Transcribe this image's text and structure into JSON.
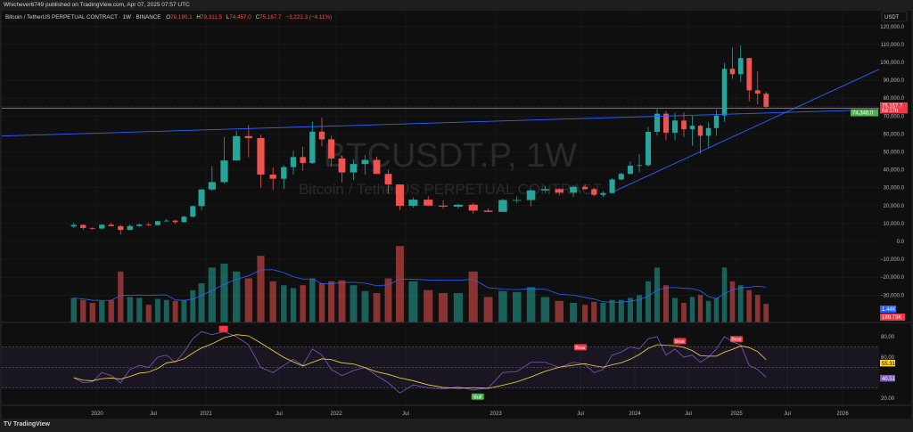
{
  "header": {
    "published": "Whichever6749 published on TradingView.com, Apr 07, 2025 07:57 UTC",
    "symbol_desc": "Bitcoin / TetherUS PERPETUAL CONTRACT · 1W · BINANCE",
    "o_label": "O",
    "o_value": "78,190.1",
    "h_label": "H",
    "h_value": "79,311.5",
    "l_label": "L",
    "l_value": "74,457.0",
    "c_label": "C",
    "c_value": "75,167.7",
    "change": "−3,222.3 (−4.11%)"
  },
  "watermark": {
    "symbol": "BTCUSDT.P, 1W",
    "description": "Bitcoin / TetherUS PERPETUAL CONTRACT"
  },
  "footer": {
    "logo_text": "TradingView"
  },
  "colors": {
    "up": "#26a69a",
    "down": "#ef5350",
    "trendline": "#2962ff",
    "horizontal": "#4caf50",
    "rsi": "#7e57c2",
    "rsi_ma": "#fdd835",
    "volume_ma": "#2962ff",
    "background": "#0f0f0f"
  },
  "chart_data": {
    "type": "candlestick",
    "currency": "USDT",
    "period_start": "2019-10",
    "period_step": "month",
    "close": [
      9200,
      7500,
      7200,
      9300,
      8500,
      6400,
      8600,
      9400,
      9100,
      11300,
      11600,
      10800,
      13800,
      19700,
      29000,
      33100,
      45200,
      58800,
      57700,
      37300,
      35000,
      41500,
      47100,
      43800,
      61300,
      57000,
      46300,
      38500,
      43200,
      45500,
      37700,
      31800,
      19900,
      23300,
      20000,
      19400,
      20500,
      17200,
      16500,
      23100,
      23100,
      28500,
      29200,
      27200,
      30500,
      29200,
      26000,
      27000,
      34600,
      37700,
      42300,
      42600,
      61200,
      71300,
      60700,
      67500,
      62700,
      64600,
      59000,
      63300,
      70300,
      96400,
      93400,
      102400,
      84400,
      82500,
      75167.7
    ],
    "first_open": 8300,
    "high": [
      10500,
      9400,
      7700,
      9600,
      10500,
      9200,
      9500,
      10100,
      10400,
      11500,
      12500,
      12100,
      14100,
      19900,
      29300,
      41900,
      58300,
      61800,
      64900,
      59500,
      41300,
      42400,
      50500,
      52900,
      67000,
      69000,
      59000,
      48000,
      45800,
      48200,
      47400,
      40000,
      31900,
      24600,
      25200,
      22800,
      21000,
      21500,
      18400,
      23900,
      25200,
      29100,
      31000,
      29800,
      31400,
      31800,
      30000,
      28000,
      35200,
      38400,
      44700,
      48900,
      64000,
      73800,
      72800,
      71900,
      72000,
      70000,
      65100,
      66500,
      73600,
      99600,
      108300,
      109400,
      102500,
      95000,
      83500
    ],
    "low": [
      7300,
      6500,
      6400,
      6900,
      8400,
      3800,
      6200,
      8100,
      8900,
      9000,
      11000,
      9900,
      10400,
      13200,
      17600,
      28100,
      32300,
      45000,
      47000,
      30000,
      28800,
      29300,
      37300,
      39600,
      43300,
      53200,
      42000,
      33000,
      34300,
      37200,
      37700,
      26700,
      17600,
      18800,
      19500,
      18100,
      18200,
      15500,
      16300,
      16500,
      21400,
      19600,
      26900,
      25800,
      24800,
      28900,
      25200,
      24900,
      26900,
      34100,
      37600,
      38500,
      41800,
      59000,
      56500,
      56500,
      58400,
      53500,
      49000,
      52500,
      59000,
      66800,
      90800,
      89100,
      78200,
      76600,
      74457
    ],
    "volume_k": [
      250,
      230,
      200,
      220,
      230,
      520,
      260,
      250,
      180,
      240,
      230,
      220,
      230,
      330,
      400,
      560,
      600,
      520,
      450,
      680,
      420,
      380,
      350,
      380,
      450,
      400,
      420,
      430,
      380,
      320,
      300,
      450,
      780,
      420,
      330,
      300,
      300,
      520,
      260,
      320,
      310,
      360,
      260,
      220,
      200,
      180,
      210,
      200,
      230,
      230,
      250,
      280,
      420,
      560,
      380,
      250,
      200,
      260,
      280,
      220,
      250,
      560,
      420,
      380,
      330,
      280,
      189.73
    ],
    "rsi": [
      40,
      35,
      36,
      45,
      42,
      35,
      48,
      52,
      50,
      60,
      62,
      55,
      65,
      78,
      85,
      82,
      85,
      80,
      72,
      50,
      45,
      52,
      58,
      52,
      68,
      62,
      48,
      42,
      47,
      50,
      42,
      35,
      25,
      33,
      30,
      29,
      31,
      28,
      30,
      45,
      46,
      55,
      55,
      50,
      55,
      53,
      45,
      48,
      62,
      65,
      70,
      68,
      78,
      80,
      62,
      68,
      60,
      62,
      55,
      60,
      68,
      80,
      75,
      72,
      52,
      48,
      40.51
    ],
    "price_axis": {
      "ticks": [
        "120,000.0",
        "110,000.0",
        "100,000.0",
        "90,000.0",
        "80,000.0",
        "70,000.0",
        "60,000.0",
        "50,000.0",
        "40,000.0",
        "30,000.0",
        "20,000.0",
        "10,000.0",
        "0.0",
        "−10,000.0",
        "−20,000.0",
        "−30,000.0"
      ],
      "tick_values": [
        120000,
        110000,
        100000,
        90000,
        80000,
        70000,
        60000,
        50000,
        40000,
        30000,
        20000,
        10000,
        0,
        -10000,
        -20000,
        -30000
      ]
    },
    "rsi_axis": {
      "ticks": [
        "80.00",
        "60.00",
        "20.00"
      ],
      "tick_values": [
        80,
        60,
        20
      ],
      "bands": [
        30,
        50,
        70
      ]
    },
    "time_axis": {
      "ticks": [
        "2020",
        "Jul",
        "2021",
        "Jul",
        "2022",
        "Jul",
        "2023",
        "Jul",
        "2024",
        "Jul",
        "2025",
        "Jul",
        "2026"
      ],
      "tick_values": [
        2020,
        2020.5,
        2021,
        2021.5,
        2022,
        2022.5,
        2023,
        2023.5,
        2024,
        2024.5,
        2025,
        2025.5,
        2026
      ]
    },
    "price_tags": [
      {
        "text": "75,167.7",
        "sub": "6d 17h",
        "value": 75167.7,
        "color": "#f23645"
      },
      {
        "text": "74,346.0",
        "value": 74346,
        "color": "#4caf50"
      }
    ],
    "volume_tags": [
      {
        "text": "1.44K",
        "color": "#2962ff"
      },
      {
        "text": "189.73K",
        "color": "#f23645"
      }
    ],
    "rsi_tags": [
      {
        "text": "55.31",
        "value": 55.31,
        "color": "#fdd835"
      },
      {
        "text": "40.51",
        "value": 40.51,
        "color": "#7e57c2"
      }
    ],
    "drawings": {
      "trendlines": [
        {
          "from": [
            2019.12,
            58800
          ],
          "to": [
            2026.33,
            73600
          ]
        },
        {
          "from": [
            2023.82,
            28200
          ],
          "to": [
            2026.33,
            96100
          ]
        }
      ],
      "horizontal": 74346
    },
    "divergence_labels": [
      {
        "text": "",
        "date": 2021.12,
        "type": "bear",
        "rsi": 82
      },
      {
        "text": "Bull",
        "date": 2022.9,
        "type": "bull",
        "rsi": 28
      },
      {
        "text": "Bear",
        "date": 2023.5,
        "type": "bear",
        "rsi": 64
      },
      {
        "text": "Bear",
        "date": 2024.42,
        "type": "bear",
        "rsi": 70
      },
      {
        "text": "Bear",
        "date": 2025.0,
        "type": "bear",
        "rsi": 72
      }
    ]
  }
}
